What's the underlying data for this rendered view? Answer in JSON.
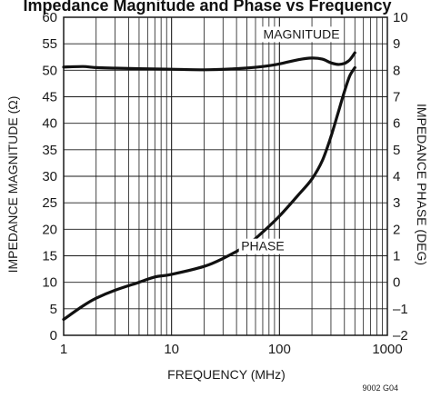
{
  "chart_data": {
    "type": "line",
    "title": "Impedance Magnitude and Phase vs Frequency",
    "xlabel": "FREQUENCY (MHz)",
    "ylabel_left": "IMPEDANCE MAGNITUDE (Ω)",
    "ylabel_right": "IMPEDANCE PHASE (DEG)",
    "x_scale": "log",
    "xlim": [
      1,
      1000
    ],
    "ylim_left": [
      0,
      60
    ],
    "ylim_right": [
      -2,
      10
    ],
    "x_ticks": [
      "1",
      "10",
      "100",
      "1000"
    ],
    "y_ticks_left": [
      "0",
      "5",
      "10",
      "15",
      "20",
      "25",
      "30",
      "35",
      "40",
      "45",
      "50",
      "55",
      "60"
    ],
    "y_ticks_right": [
      "–2",
      "–1",
      "0",
      "1",
      "2",
      "3",
      "4",
      "5",
      "6",
      "7",
      "8",
      "9",
      "10"
    ],
    "grid": true,
    "series": [
      {
        "name": "MAGNITUDE",
        "axis": "left",
        "x": [
          1,
          1.5,
          2,
          3,
          5,
          10,
          20,
          40,
          70,
          100,
          150,
          200,
          250,
          300,
          350,
          400,
          450,
          500
        ],
        "y": [
          50.6,
          50.7,
          50.5,
          50.4,
          50.3,
          50.2,
          50.1,
          50.3,
          50.7,
          51.2,
          52.0,
          52.3,
          52.1,
          51.4,
          51.1,
          51.3,
          52.0,
          53.3
        ]
      },
      {
        "name": "PHASE",
        "axis": "right",
        "x": [
          1,
          1.5,
          2,
          3,
          5,
          7,
          10,
          20,
          30,
          50,
          70,
          100,
          150,
          200,
          250,
          300,
          350,
          400,
          450,
          500
        ],
        "y": [
          -1.4,
          -0.9,
          -0.6,
          -0.3,
          0.0,
          0.2,
          0.3,
          0.6,
          0.9,
          1.4,
          1.9,
          2.5,
          3.3,
          3.9,
          4.6,
          5.5,
          6.4,
          7.2,
          7.8,
          8.1
        ]
      }
    ]
  },
  "figure_code": "9002 G04",
  "visible_title_text": "Impedance Magnitude and Phase vs Frequency"
}
